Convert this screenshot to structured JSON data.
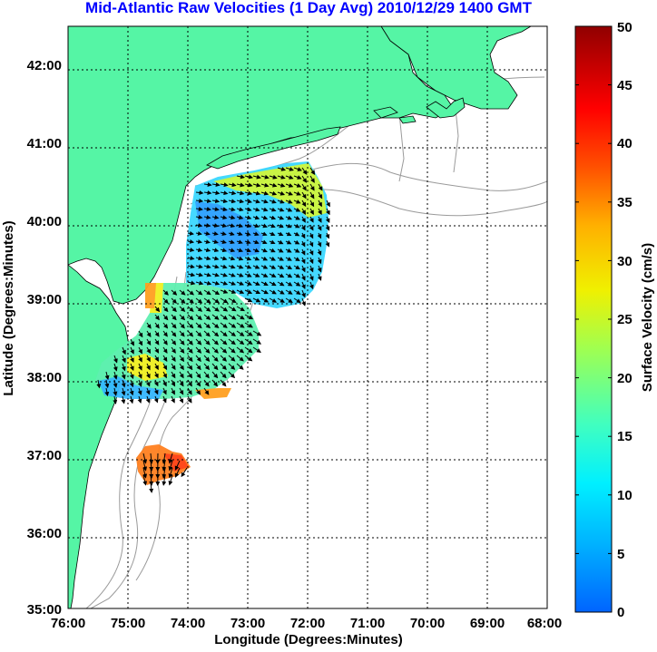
{
  "title": "Mid-Atlantic Raw Velocities (1 Day Avg) 2010/12/29 1400 GMT",
  "x_axis": {
    "label": "Longitude (Degrees:Minutes)",
    "ticks": [
      "76:00",
      "75:00",
      "74:00",
      "73:00",
      "72:00",
      "71:00",
      "70:00",
      "69:00",
      "68:00"
    ]
  },
  "y_axis": {
    "label": "Latitude (Degrees:Minutes)",
    "ticks": [
      "35:00",
      "36:00",
      "37:00",
      "38:00",
      "39:00",
      "40:00",
      "41:00",
      "42:00"
    ]
  },
  "colorbar": {
    "label": "Surface Velocity (cm/s)",
    "ticks": [
      "0",
      "5",
      "10",
      "15",
      "20",
      "25",
      "30",
      "35",
      "40",
      "45",
      "50"
    ],
    "range": [
      0,
      50
    ]
  },
  "colors": {
    "land": "#55f5a5",
    "water": "#ffffff",
    "coastline": "#000000",
    "bathymetry": "#9a9a9a",
    "grid": "#000000",
    "title": "#0000ff"
  }
}
